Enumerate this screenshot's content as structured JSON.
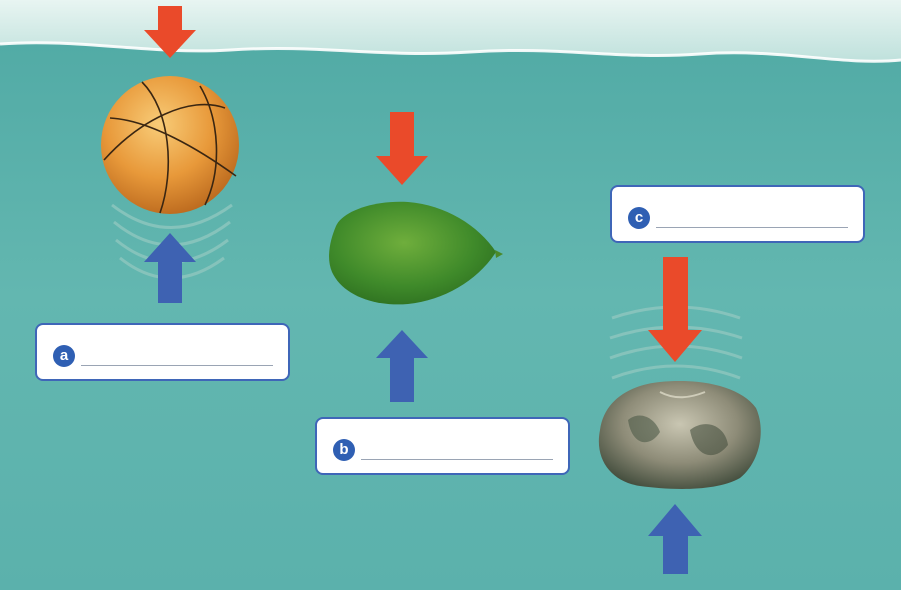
{
  "colors": {
    "water": "#5fb3ad",
    "water_surface": "#d9eeea",
    "down_arrow": "#ea4a2a",
    "up_arrow": "#3e62b2",
    "box_border": "#3f66b8",
    "badge": "#2f5fb3"
  },
  "objects": [
    {
      "id": "basketball",
      "icon": "basketball-icon"
    },
    {
      "id": "balloon",
      "icon": "balloon-icon"
    },
    {
      "id": "rock",
      "icon": "rock-icon"
    }
  ],
  "answers": {
    "a": {
      "label": "a",
      "value": ""
    },
    "b": {
      "label": "b",
      "value": ""
    },
    "c": {
      "label": "c",
      "value": ""
    }
  }
}
